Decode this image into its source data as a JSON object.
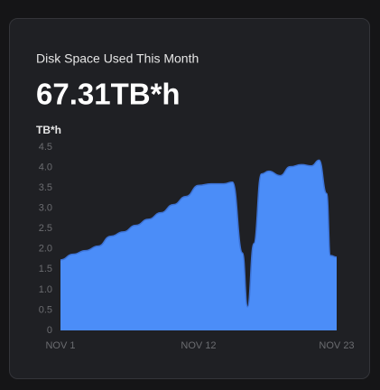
{
  "chart_data": {
    "type": "area",
    "title": "Disk Space Used This Month",
    "subtitle": "67.31TB*h",
    "y_label": "TB*h",
    "x": [
      1,
      2,
      3,
      4,
      5,
      6,
      7,
      8,
      9,
      10,
      11,
      12,
      13,
      14,
      14.7,
      15.5,
      15.9,
      16.4,
      17,
      17.6,
      18.5,
      19.3,
      20.2,
      21,
      21.6,
      22.2,
      22.5,
      23
    ],
    "values": [
      1.73,
      1.87,
      1.96,
      2.07,
      2.31,
      2.42,
      2.58,
      2.73,
      2.89,
      3.09,
      3.29,
      3.56,
      3.6,
      3.6,
      3.64,
      1.9,
      0.58,
      2.13,
      3.84,
      3.91,
      3.8,
      4.02,
      4.07,
      4.04,
      4.18,
      3.36,
      1.84,
      1.8
    ],
    "color": "#4b8df8",
    "xlim": [
      1,
      23
    ],
    "xticks": [
      {
        "value": 1,
        "label": "NOV 1"
      },
      {
        "value": 12,
        "label": "NOV 12"
      },
      {
        "value": 23,
        "label": "NOV 23"
      }
    ],
    "ylim": [
      0,
      4.5
    ],
    "yticks": [
      0,
      0.5,
      {
        "value": 1,
        "label": "1.0"
      },
      1.5,
      {
        "value": 2,
        "label": "2.0"
      },
      2.5,
      {
        "value": 3,
        "label": "3.0"
      },
      3.5,
      {
        "value": 4,
        "label": "4.0"
      },
      4.5
    ],
    "grid": false
  }
}
